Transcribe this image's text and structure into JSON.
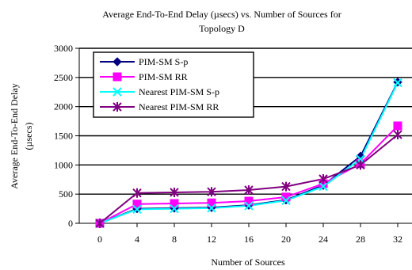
{
  "chart_data": {
    "type": "line",
    "title_line1": "Average End-To-End Delay (µsecs) vs. Number of Sources for",
    "title_line2": "Topology D",
    "xlabel": "Number of Sources",
    "ylabel_line1": "Average End-To-End Delay",
    "ylabel_line2": "(µsecs)",
    "x": [
      0,
      4,
      8,
      12,
      16,
      20,
      24,
      28,
      32
    ],
    "x_tick_labels": [
      "0",
      "4",
      "8",
      "12",
      "16",
      "20",
      "24",
      "28",
      "32"
    ],
    "ylim": [
      0,
      3000
    ],
    "y_ticks": [
      0,
      500,
      1000,
      1500,
      2000,
      2500,
      3000
    ],
    "y_tick_labels": [
      "0",
      "500",
      "1000",
      "1500",
      "2000",
      "2500",
      "3000"
    ],
    "grid": "horizontal",
    "legend_position": "upper-left",
    "series": [
      {
        "name": "PIM-SM S-p",
        "color": "#000080",
        "marker": "diamond",
        "values": [
          0,
          250,
          260,
          270,
          310,
          400,
          650,
          1150,
          2420
        ]
      },
      {
        "name": "PIM-SM RR",
        "color": "#ff00ff",
        "marker": "square",
        "values": [
          0,
          330,
          340,
          350,
          380,
          450,
          680,
          1020,
          1670
        ]
      },
      {
        "name": "Nearest PIM-SM S-p",
        "color": "#00ffff",
        "marker": "x",
        "values": [
          0,
          240,
          250,
          260,
          300,
          390,
          630,
          1100,
          2410
        ]
      },
      {
        "name": "Nearest PIM-SM RR",
        "color": "#800080",
        "marker": "star",
        "values": [
          0,
          520,
          530,
          540,
          570,
          630,
          760,
          1000,
          1520
        ]
      }
    ]
  }
}
